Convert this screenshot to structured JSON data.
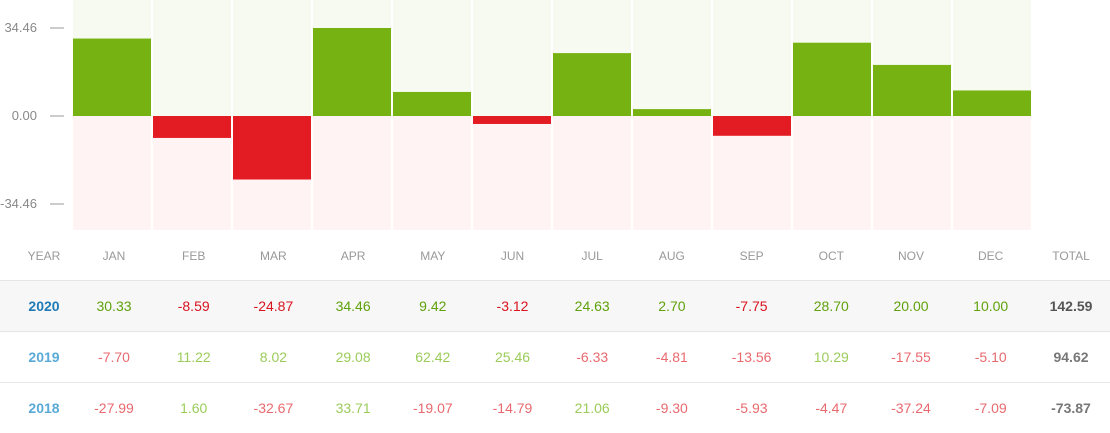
{
  "colors": {
    "positive_bar": "#76b312",
    "negative_bar": "#e31b23",
    "positive_bg": "#f7faf1",
    "negative_bg": "#fff3f4",
    "year_current": "#1f7ab5",
    "year_other": "#5aaad8",
    "pos_strong": "#5fa10c",
    "neg_strong": "#d9131f",
    "pos_light": "#9bcc5a",
    "neg_light": "#e86a6f",
    "total_strong": "#555555",
    "total_light": "#777777"
  },
  "chart_data": {
    "type": "bar",
    "categories": [
      "JAN",
      "FEB",
      "MAR",
      "APR",
      "MAY",
      "JUN",
      "JUL",
      "AUG",
      "SEP",
      "OCT",
      "NOV",
      "DEC"
    ],
    "values": [
      30.33,
      -8.59,
      -24.87,
      34.46,
      9.42,
      -3.12,
      24.63,
      2.7,
      -7.75,
      28.7,
      20.0,
      10.0
    ],
    "ylim": [
      -34.46,
      34.46
    ],
    "yticks": [
      "34.46",
      "0.00",
      "-34.46"
    ]
  },
  "table": {
    "headers": [
      "YEAR",
      "JAN",
      "FEB",
      "MAR",
      "APR",
      "MAY",
      "JUN",
      "JUL",
      "AUG",
      "SEP",
      "OCT",
      "NOV",
      "DEC",
      "TOTAL"
    ],
    "rows": [
      {
        "year": "2020",
        "values": [
          "30.33",
          "-8.59",
          "-24.87",
          "34.46",
          "9.42",
          "-3.12",
          "24.63",
          "2.70",
          "-7.75",
          "28.70",
          "20.00",
          "10.00"
        ],
        "total": "142.59"
      },
      {
        "year": "2019",
        "values": [
          "-7.70",
          "11.22",
          "8.02",
          "29.08",
          "62.42",
          "25.46",
          "-6.33",
          "-4.81",
          "-13.56",
          "10.29",
          "-17.55",
          "-5.10"
        ],
        "total": "94.62"
      },
      {
        "year": "2018",
        "values": [
          "-27.99",
          "1.60",
          "-32.67",
          "33.71",
          "-19.07",
          "-14.79",
          "21.06",
          "-9.30",
          "-5.93",
          "-4.47",
          "-37.24",
          "-7.09"
        ],
        "total": "-73.87"
      }
    ]
  }
}
